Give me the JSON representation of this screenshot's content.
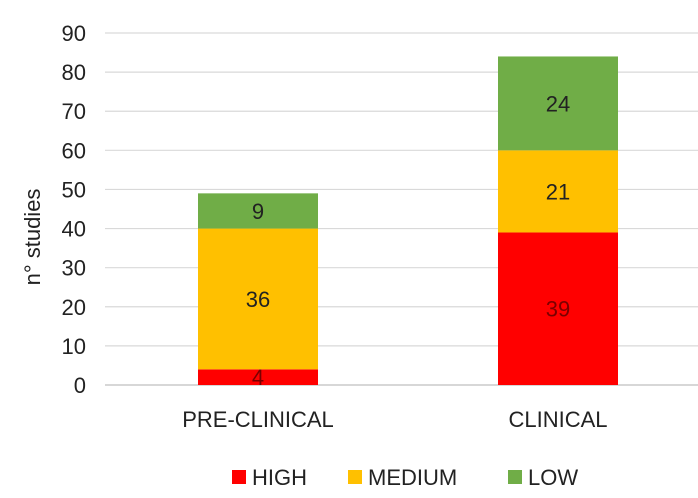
{
  "chart_data": {
    "type": "stacked-bar",
    "categories": [
      "PRE-CLINICAL",
      "CLINICAL"
    ],
    "series": [
      {
        "name": "HIGH",
        "color": "#ff0000",
        "values": [
          4,
          39
        ]
      },
      {
        "name": "MEDIUM",
        "color": "#ffc000",
        "values": [
          36,
          21
        ]
      },
      {
        "name": "LOW",
        "color": "#70ad47",
        "values": [
          9,
          24
        ]
      }
    ],
    "ylabel": "n° studies",
    "ylim": [
      0,
      90
    ],
    "yticks": [
      0,
      10,
      20,
      30,
      40,
      50,
      60,
      70,
      80,
      90
    ],
    "grid": true,
    "legend": "bottom"
  }
}
